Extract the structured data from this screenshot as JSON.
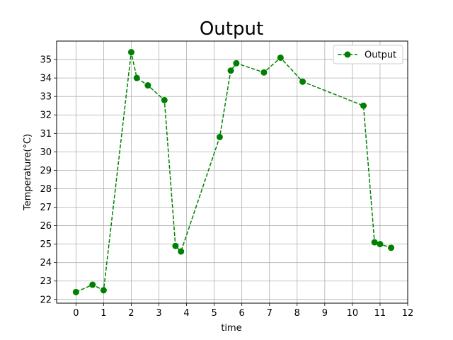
{
  "chart_data": {
    "type": "line",
    "title": "Output",
    "xlabel": "time",
    "ylabel": "Temperature(°C)",
    "xlim": [
      -0.7,
      12.0
    ],
    "ylim": [
      21.8,
      36.0
    ],
    "xticks": [
      0,
      1,
      2,
      3,
      4,
      5,
      6,
      7,
      8,
      9,
      10,
      11,
      12
    ],
    "yticks": [
      22,
      23,
      24,
      25,
      26,
      27,
      28,
      29,
      30,
      31,
      32,
      33,
      34,
      35
    ],
    "grid": true,
    "legend_position": "top-right",
    "series": [
      {
        "name": "Output",
        "color": "#008000",
        "line_style": "dashed",
        "marker": "circle",
        "x": [
          0,
          0.6,
          1.0,
          2.0,
          2.2,
          2.6,
          3.2,
          3.6,
          3.8,
          5.2,
          5.6,
          5.8,
          6.8,
          7.4,
          8.2,
          10.4,
          10.8,
          11.0,
          11.4
        ],
        "y": [
          22.4,
          22.8,
          22.5,
          35.4,
          34.0,
          33.6,
          32.8,
          24.9,
          24.6,
          30.8,
          34.4,
          34.8,
          34.3,
          35.1,
          33.8,
          32.5,
          25.1,
          25.0,
          24.8
        ]
      }
    ]
  }
}
